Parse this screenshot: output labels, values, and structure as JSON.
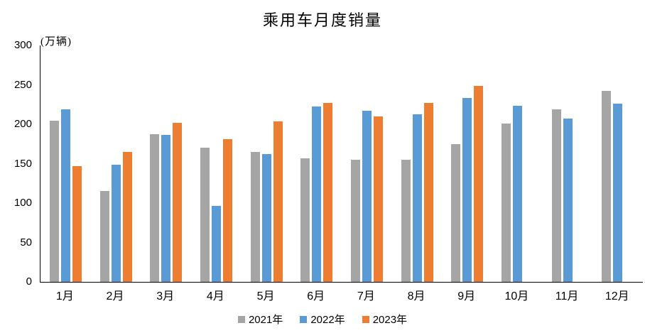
{
  "chart_data": {
    "type": "bar",
    "title": "乘用车月度销量",
    "ylabel": "(万辆)",
    "xlabel": "",
    "categories": [
      "1月",
      "2月",
      "3月",
      "4月",
      "5月",
      "6月",
      "7月",
      "8月",
      "9月",
      "10月",
      "11月",
      "12月"
    ],
    "series": [
      {
        "name": "2021年",
        "color": "#A5A5A5",
        "values": [
          204.5,
          115.6,
          187.4,
          170.4,
          164.6,
          156.9,
          155.1,
          155.2,
          175.1,
          200.7,
          219.2,
          242.2
        ]
      },
      {
        "name": "2022年",
        "color": "#5B9BD5",
        "values": [
          218.6,
          148.7,
          186.4,
          96.5,
          162.3,
          222.2,
          217.4,
          212.5,
          233.2,
          223.1,
          207.5,
          226.3
        ]
      },
      {
        "name": "2023年",
        "color": "#ED7D31",
        "values": [
          146.9,
          165.3,
          201.7,
          181.1,
          204.0,
          226.8,
          210.0,
          227.0,
          248.9,
          null,
          null,
          null
        ]
      }
    ],
    "ylim": [
      0,
      300
    ],
    "yticks": [
      300,
      250,
      200,
      150,
      100,
      50,
      0
    ],
    "grid": false,
    "legend_position": "bottom",
    "axis_color": "#000000"
  }
}
